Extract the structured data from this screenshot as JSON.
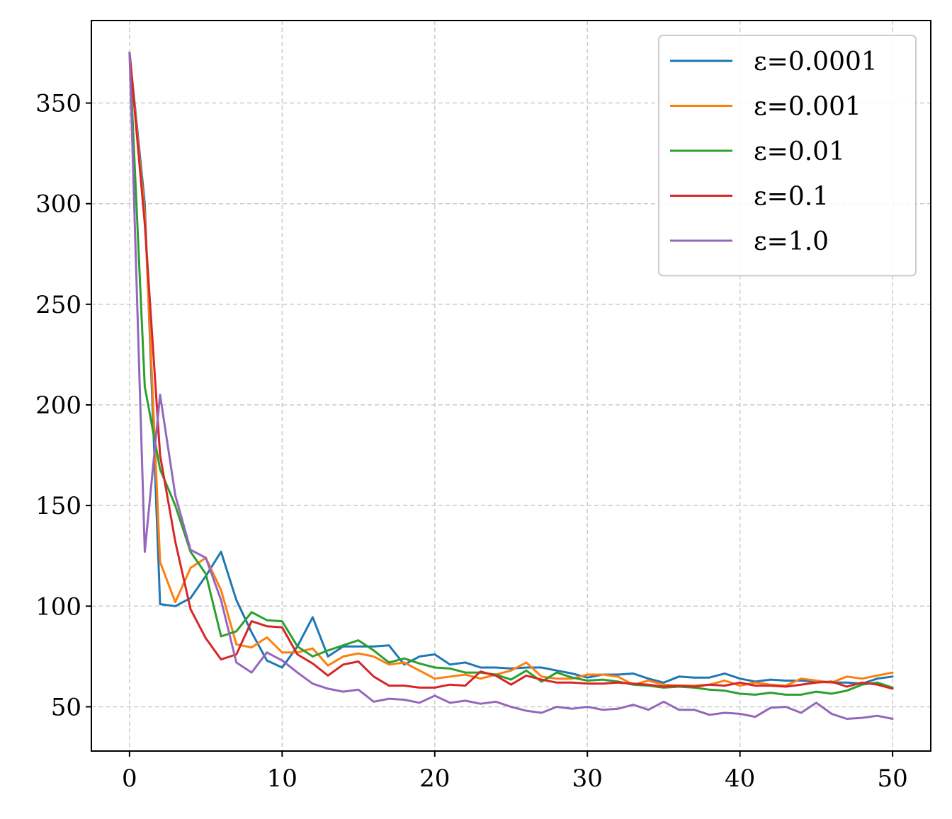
{
  "chart_data": {
    "type": "line",
    "title": "",
    "xlabel": "",
    "ylabel": "",
    "xlim": [
      -2.5,
      52.5
    ],
    "ylim": [
      28,
      391
    ],
    "xticks": [
      0,
      10,
      20,
      30,
      40,
      50
    ],
    "yticks": [
      50,
      100,
      150,
      200,
      250,
      300,
      350
    ],
    "xtick_labels": [
      "0",
      "10",
      "20",
      "30",
      "40",
      "50"
    ],
    "ytick_labels": [
      "50",
      "100",
      "150",
      "200",
      "250",
      "300",
      "350"
    ],
    "grid": true,
    "legend_position": "top-right",
    "series": [
      {
        "name": "ε=0.0001",
        "color": "#1f77b4",
        "x": [
          0,
          1,
          2,
          3,
          4,
          5,
          6,
          7,
          8,
          9,
          10,
          11,
          12,
          13,
          14,
          15,
          16,
          17,
          18,
          19,
          20,
          21,
          22,
          23,
          24,
          25,
          26,
          27,
          28,
          29,
          30,
          31,
          32,
          33,
          34,
          35,
          36,
          37,
          38,
          39,
          40,
          41,
          42,
          43,
          44,
          45,
          46,
          47,
          48,
          49,
          50
        ],
        "values": [
          375,
          300,
          101,
          100,
          104,
          115,
          127,
          103,
          87,
          73,
          69.5,
          80,
          94.5,
          75,
          80,
          80,
          80,
          80.5,
          71,
          75,
          76,
          71,
          72,
          69.5,
          69.5,
          69,
          69.5,
          69.5,
          68,
          66.5,
          64.5,
          66,
          66,
          66.5,
          64,
          62,
          65,
          64.5,
          64.5,
          66.5,
          64,
          62.5,
          63.5,
          63,
          63,
          62.5,
          62,
          62,
          61.5,
          64,
          65
        ]
      },
      {
        "name": "ε=0.001",
        "color": "#ff7f0e",
        "x": [
          0,
          1,
          2,
          3,
          4,
          5,
          6,
          7,
          8,
          9,
          10,
          11,
          12,
          13,
          14,
          15,
          16,
          17,
          18,
          19,
          20,
          21,
          22,
          23,
          24,
          25,
          26,
          27,
          28,
          29,
          30,
          31,
          32,
          33,
          34,
          35,
          36,
          37,
          38,
          39,
          40,
          41,
          42,
          43,
          44,
          45,
          46,
          47,
          48,
          49,
          50
        ],
        "values": [
          375,
          295,
          122,
          102,
          119,
          124,
          108,
          81,
          79.5,
          84.5,
          77,
          77,
          79,
          70.5,
          75,
          76.5,
          75,
          71,
          72,
          68,
          64,
          65,
          66,
          64,
          66,
          68,
          72,
          65,
          64,
          64,
          66,
          66,
          65,
          61,
          63,
          61,
          60.5,
          60.5,
          61,
          63,
          60.5,
          62,
          61,
          60.5,
          64,
          63,
          62,
          65,
          64,
          65.5,
          67
        ]
      },
      {
        "name": "ε=0.01",
        "color": "#2ca02c",
        "x": [
          0,
          1,
          2,
          3,
          4,
          5,
          6,
          7,
          8,
          9,
          10,
          11,
          12,
          13,
          14,
          15,
          16,
          17,
          18,
          19,
          20,
          21,
          22,
          23,
          24,
          25,
          26,
          27,
          28,
          29,
          30,
          31,
          32,
          33,
          34,
          35,
          36,
          37,
          38,
          39,
          40,
          41,
          42,
          43,
          44,
          45,
          46,
          47,
          48,
          49,
          50
        ],
        "values": [
          375,
          209,
          168,
          150,
          127,
          116,
          85,
          87.5,
          97,
          93,
          92.5,
          80,
          75,
          78,
          80.5,
          83,
          78,
          72,
          74,
          71.5,
          69.5,
          69,
          67,
          67,
          66,
          63.5,
          68,
          62.5,
          67,
          64.5,
          63,
          63.5,
          62.5,
          61,
          60.5,
          59.5,
          60,
          59.5,
          58.5,
          58,
          56.5,
          56,
          57,
          56,
          56,
          57.5,
          56.5,
          58,
          61,
          62,
          59.5
        ]
      },
      {
        "name": "ε=0.1",
        "color": "#d62728",
        "x": [
          0,
          1,
          2,
          3,
          4,
          5,
          6,
          7,
          8,
          9,
          10,
          11,
          12,
          13,
          14,
          15,
          16,
          17,
          18,
          19,
          20,
          21,
          22,
          23,
          24,
          25,
          26,
          27,
          28,
          29,
          30,
          31,
          32,
          33,
          34,
          35,
          36,
          37,
          38,
          39,
          40,
          41,
          42,
          43,
          44,
          45,
          46,
          47,
          48,
          49,
          50
        ],
        "values": [
          375,
          290,
          175,
          132,
          98.5,
          84,
          73.5,
          76,
          92.5,
          90,
          89.5,
          76,
          71.5,
          65.5,
          71,
          72.5,
          65,
          60.5,
          60.5,
          59.5,
          59.5,
          61,
          60.5,
          67.5,
          65.5,
          61,
          65.5,
          63.5,
          62,
          62,
          61.5,
          61.5,
          62,
          61.5,
          61,
          60,
          60.5,
          60,
          61,
          60.5,
          62,
          60.5,
          60.5,
          60,
          61,
          62,
          62.5,
          60,
          62,
          61,
          59
        ]
      },
      {
        "name": "ε=1.0",
        "color": "#9467bd",
        "x": [
          0,
          1,
          2,
          3,
          4,
          5,
          6,
          7,
          8,
          9,
          10,
          11,
          12,
          13,
          14,
          15,
          16,
          17,
          18,
          19,
          20,
          21,
          22,
          23,
          24,
          25,
          26,
          27,
          28,
          29,
          30,
          31,
          32,
          33,
          34,
          35,
          36,
          37,
          38,
          39,
          40,
          41,
          42,
          43,
          44,
          45,
          46,
          47,
          48,
          49,
          50
        ],
        "values": [
          375,
          127,
          205,
          155,
          128,
          124,
          103,
          72,
          67,
          77,
          73,
          67,
          61.5,
          59,
          57.5,
          58.5,
          52.5,
          54,
          53.5,
          52,
          55.5,
          52,
          53,
          51.5,
          52.5,
          50,
          48,
          47,
          50,
          49,
          50,
          48.5,
          49,
          51,
          48.5,
          52.5,
          48.5,
          48.5,
          46,
          47,
          46.5,
          45,
          49.5,
          50,
          47,
          52,
          46.5,
          44,
          44.5,
          45.5,
          44
        ]
      }
    ]
  }
}
